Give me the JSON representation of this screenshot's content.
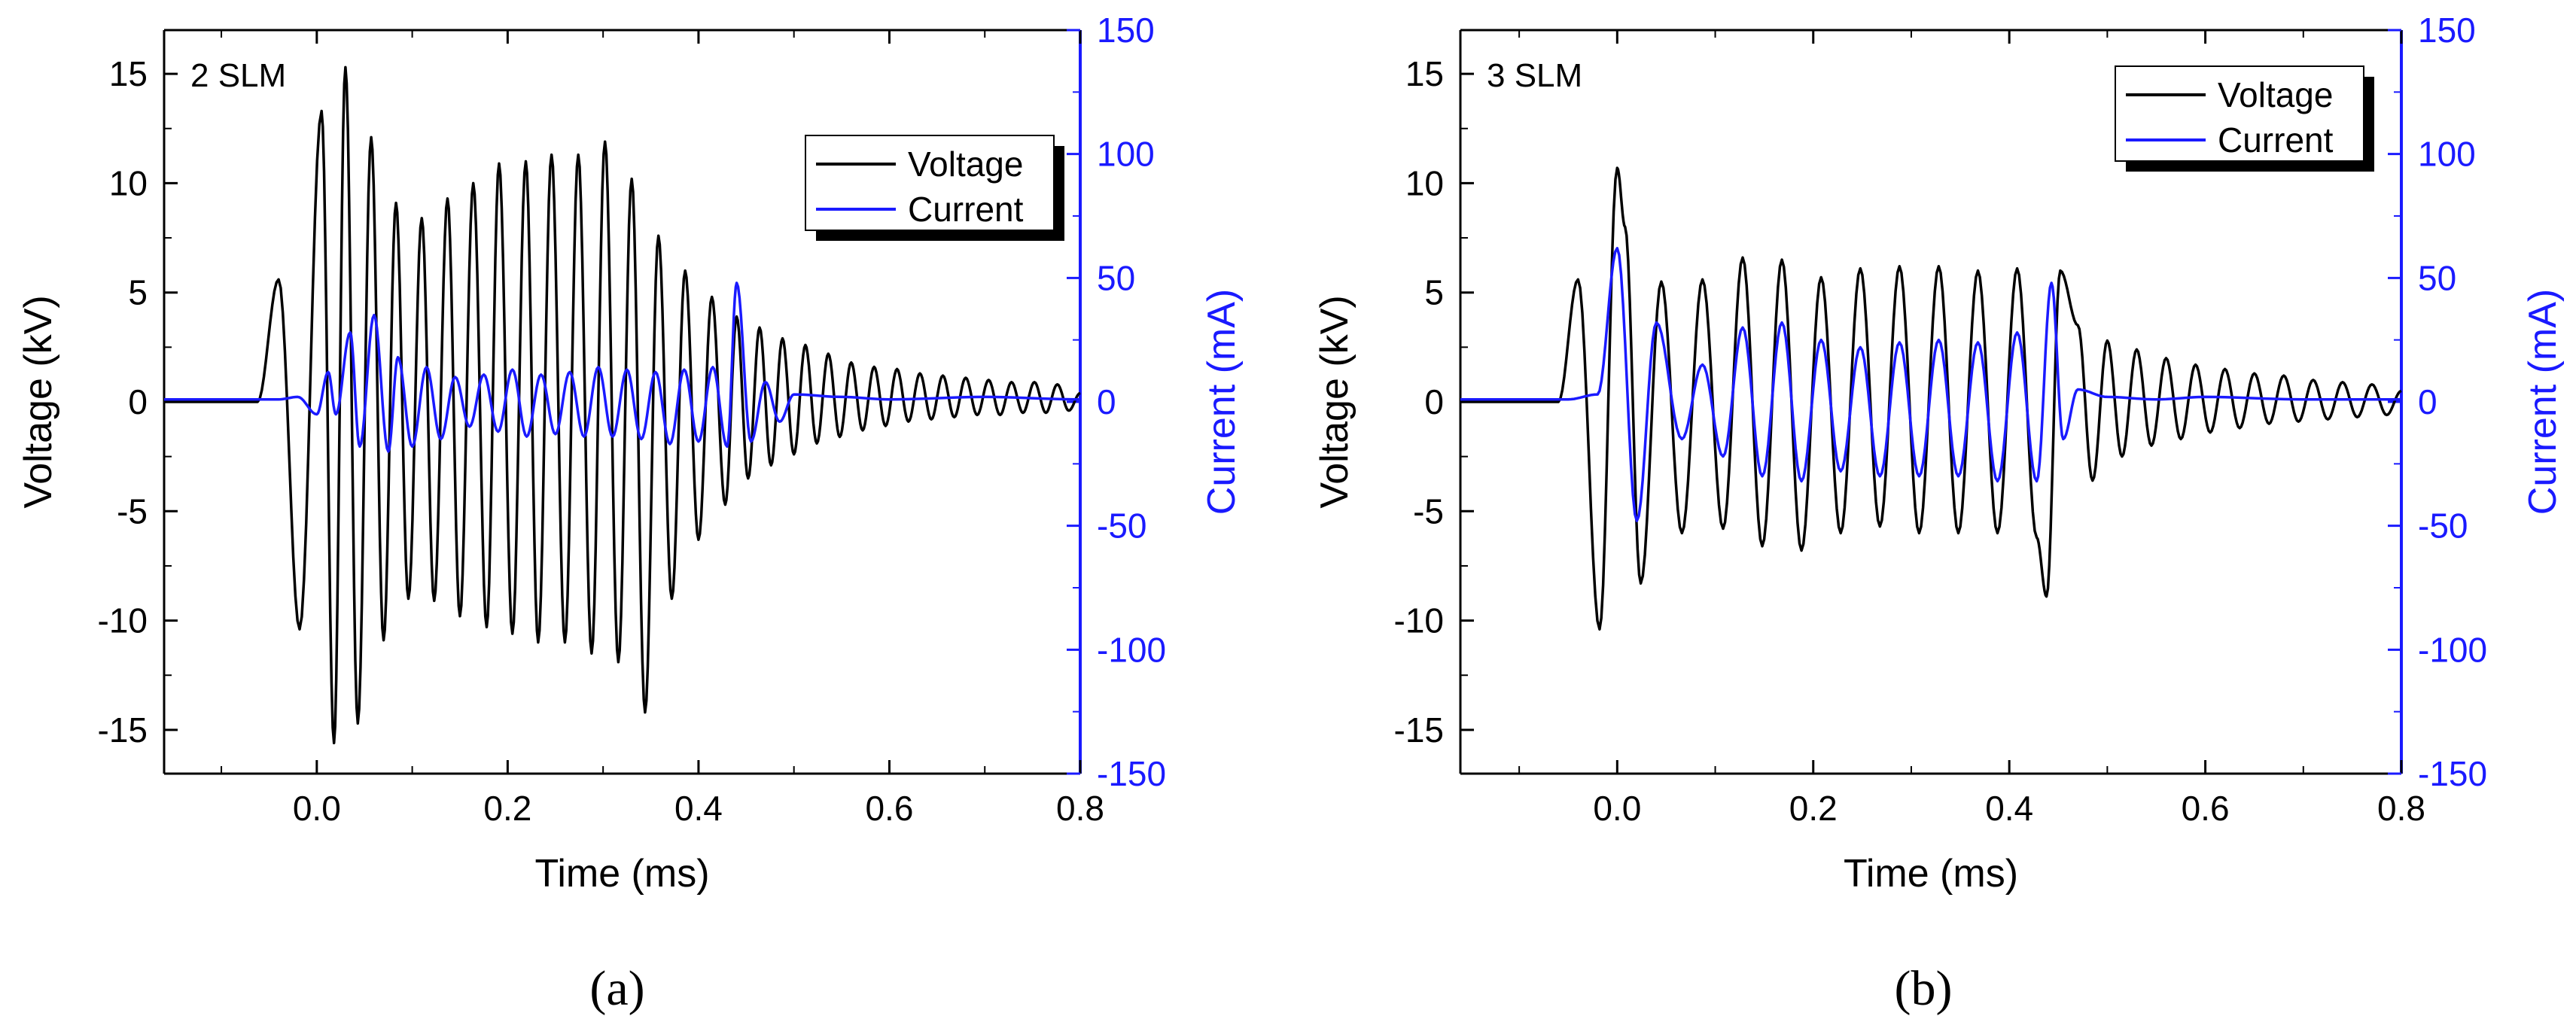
{
  "colors": {
    "voltage": "#000000",
    "current": "#1a1aff",
    "axis_left": "#000000",
    "axis_right": "#1a1aff"
  },
  "chart_data": [
    {
      "type": "line",
      "panel_label": "(a)",
      "annotation": "2 SLM",
      "xlabel": "Time (ms)",
      "ylabel": "Voltage (kV)",
      "ylabel_right": "Current (mA)",
      "xlim": [
        -0.16,
        0.8
      ],
      "ylim": [
        -17,
        17
      ],
      "ylim_right": [
        -150,
        150
      ],
      "xticks": [
        "0.0",
        "0.2",
        "0.4",
        "0.6",
        "0.8"
      ],
      "yticks": [
        "-15",
        "-10",
        "-5",
        "0",
        "5",
        "10",
        "15"
      ],
      "yticks_right": [
        "-150",
        "-100",
        "-50",
        "0",
        "50",
        "100",
        "150"
      ],
      "legend": {
        "placement": "top-right",
        "entries": [
          "Voltage",
          "Current"
        ]
      },
      "series": [
        {
          "name": "Voltage",
          "axis": "left",
          "x": [
            -0.16,
            -0.062,
            -0.04,
            -0.018,
            0.005,
            0.018,
            0.03,
            0.043,
            0.057,
            0.07,
            0.083,
            0.096,
            0.11,
            0.123,
            0.137,
            0.15,
            0.164,
            0.178,
            0.191,
            0.205,
            0.219,
            0.232,
            0.246,
            0.26,
            0.274,
            0.288,
            0.302,
            0.316,
            0.33,
            0.344,
            0.358,
            0.372,
            0.386,
            0.4,
            0.414,
            0.428,
            0.44,
            0.452,
            0.464,
            0.476,
            0.488,
            0.5,
            0.512,
            0.524,
            0.536,
            0.548,
            0.56,
            0.572,
            0.584,
            0.596,
            0.608,
            0.62,
            0.632,
            0.644,
            0.656,
            0.668,
            0.68,
            0.692,
            0.704,
            0.716,
            0.728,
            0.74,
            0.752,
            0.764,
            0.776,
            0.788,
            0.8
          ],
          "y": [
            0,
            0,
            5.6,
            -10.4,
            13.3,
            -15.6,
            15.3,
            -14.7,
            12.1,
            -10.9,
            9.1,
            -9.0,
            8.4,
            -9.1,
            9.3,
            -9.8,
            10.0,
            -10.3,
            10.9,
            -10.6,
            11.0,
            -11.0,
            11.3,
            -11.0,
            11.3,
            -11.5,
            11.9,
            -11.9,
            10.2,
            -14.2,
            7.6,
            -9.0,
            6.0,
            -6.3,
            4.8,
            -4.7,
            3.9,
            -3.5,
            3.4,
            -2.9,
            2.9,
            -2.4,
            2.6,
            -1.9,
            2.2,
            -1.6,
            1.8,
            -1.3,
            1.6,
            -1.1,
            1.5,
            -0.9,
            1.3,
            -0.8,
            1.2,
            -0.7,
            1.1,
            -0.6,
            1.0,
            -0.6,
            0.9,
            -0.5,
            0.9,
            -0.5,
            0.8,
            -0.4,
            0.4
          ]
        },
        {
          "name": "Current",
          "axis": "right",
          "x": [
            -0.16,
            -0.04,
            -0.02,
            0.0,
            0.012,
            0.02,
            0.035,
            0.045,
            0.06,
            0.075,
            0.085,
            0.1,
            0.115,
            0.13,
            0.145,
            0.16,
            0.175,
            0.19,
            0.205,
            0.22,
            0.235,
            0.25,
            0.265,
            0.28,
            0.295,
            0.31,
            0.325,
            0.34,
            0.355,
            0.37,
            0.385,
            0.4,
            0.415,
            0.43,
            0.44,
            0.455,
            0.47,
            0.485,
            0.5,
            0.55,
            0.6,
            0.7,
            0.8
          ],
          "y": [
            1,
            1,
            2,
            -5,
            12,
            -5,
            28,
            -18,
            35,
            -20,
            18,
            -18,
            14,
            -15,
            10,
            -10,
            11,
            -12,
            13,
            -14,
            11,
            -13,
            12,
            -14,
            14,
            -14,
            13,
            -15,
            12,
            -17,
            13,
            -16,
            14,
            -18,
            48,
            -16,
            8,
            -8,
            3,
            2,
            1,
            2,
            1
          ]
        }
      ]
    },
    {
      "type": "line",
      "panel_label": "(b)",
      "annotation": "3 SLM",
      "xlabel": "Time (ms)",
      "ylabel": "Voltage (kV)",
      "ylabel_right": "Current (mA)",
      "xlim": [
        -0.16,
        0.8
      ],
      "ylim": [
        -17,
        17
      ],
      "ylim_right": [
        -150,
        150
      ],
      "xticks": [
        "0.0",
        "0.2",
        "0.4",
        "0.6",
        "0.8"
      ],
      "yticks": [
        "-15",
        "-10",
        "-5",
        "0",
        "5",
        "10",
        "15"
      ],
      "yticks_right": [
        "-150",
        "-100",
        "-50",
        "0",
        "50",
        "100",
        "150"
      ],
      "legend": {
        "placement": "top-right",
        "entries": [
          "Voltage",
          "Current"
        ]
      },
      "series": [
        {
          "name": "Voltage",
          "axis": "left",
          "x": [
            -0.16,
            -0.06,
            -0.04,
            -0.018,
            0.0,
            0.008,
            0.024,
            0.045,
            0.066,
            0.087,
            0.108,
            0.128,
            0.148,
            0.168,
            0.188,
            0.208,
            0.228,
            0.248,
            0.268,
            0.288,
            0.308,
            0.328,
            0.348,
            0.368,
            0.388,
            0.408,
            0.428,
            0.438,
            0.452,
            0.47,
            0.485,
            0.5,
            0.515,
            0.53,
            0.545,
            0.56,
            0.575,
            0.59,
            0.605,
            0.62,
            0.635,
            0.65,
            0.665,
            0.68,
            0.695,
            0.71,
            0.725,
            0.74,
            0.755,
            0.77,
            0.785,
            0.8
          ],
          "y": [
            0,
            0,
            5.6,
            -10.4,
            10.7,
            8.0,
            -8.3,
            5.5,
            -6.0,
            5.6,
            -5.8,
            6.6,
            -6.6,
            6.5,
            -6.8,
            5.7,
            -6.0,
            6.1,
            -5.7,
            6.2,
            -6.0,
            6.2,
            -6.0,
            6.0,
            -6.0,
            6.1,
            -6.2,
            -8.9,
            6.0,
            3.5,
            -3.6,
            2.8,
            -2.5,
            2.4,
            -2.0,
            2.0,
            -1.7,
            1.7,
            -1.4,
            1.5,
            -1.2,
            1.3,
            -1.0,
            1.2,
            -0.9,
            1.0,
            -0.8,
            0.9,
            -0.7,
            0.8,
            -0.6,
            0.5
          ]
        },
        {
          "name": "Current",
          "axis": "right",
          "x": [
            -0.16,
            -0.05,
            -0.02,
            0.0,
            0.02,
            0.04,
            0.066,
            0.087,
            0.108,
            0.128,
            0.148,
            0.168,
            0.188,
            0.208,
            0.228,
            0.248,
            0.268,
            0.288,
            0.308,
            0.328,
            0.348,
            0.368,
            0.388,
            0.408,
            0.428,
            0.443,
            0.455,
            0.47,
            0.5,
            0.55,
            0.6,
            0.7,
            0.8
          ],
          "y": [
            1,
            1,
            3,
            62,
            -48,
            32,
            -15,
            15,
            -22,
            30,
            -30,
            32,
            -32,
            25,
            -28,
            22,
            -30,
            24,
            -30,
            25,
            -30,
            24,
            -32,
            28,
            -32,
            48,
            -15,
            5,
            2,
            1,
            2,
            1,
            1
          ]
        }
      ]
    }
  ]
}
